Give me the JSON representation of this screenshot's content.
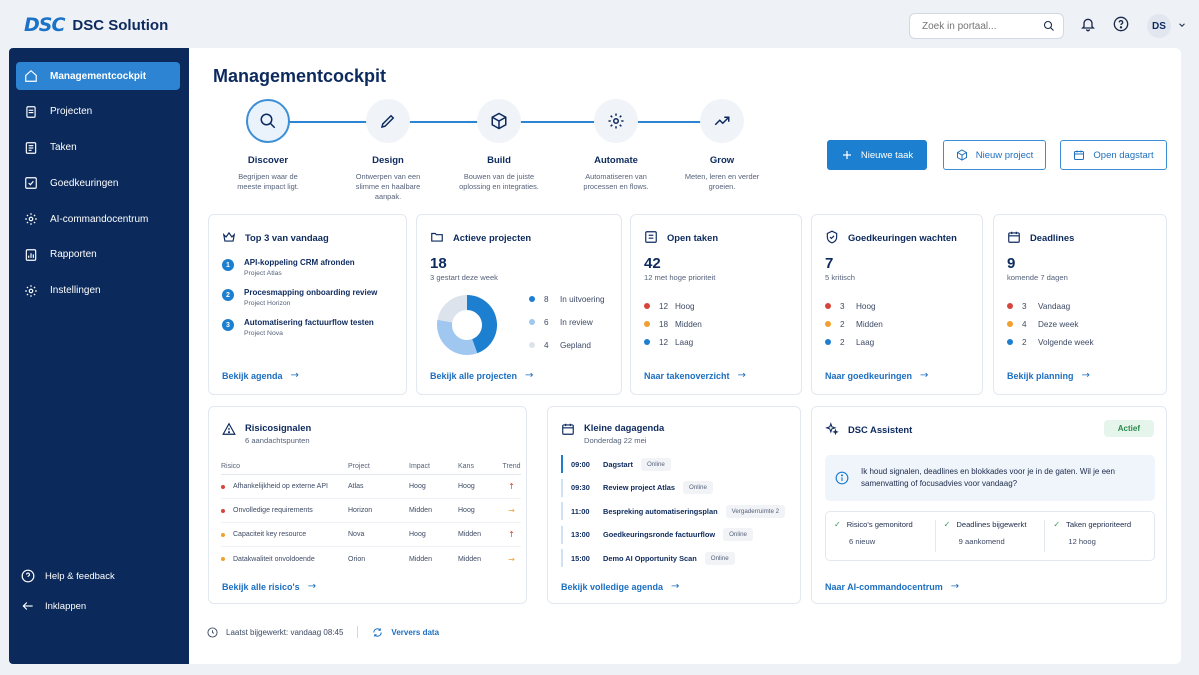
{
  "brand": {
    "mark": "DSC",
    "name": "DSC Solution"
  },
  "search": {
    "placeholder": "Zoek in portaal..."
  },
  "user": {
    "initials": "DS"
  },
  "sidebar": {
    "items": [
      {
        "label": "Managementcockpit",
        "icon": "home-icon"
      },
      {
        "label": "Projecten",
        "icon": "folder-icon"
      },
      {
        "label": "Taken",
        "icon": "list-icon"
      },
      {
        "label": "Goedkeuringen",
        "icon": "check-square-icon"
      },
      {
        "label": "AI-commandocentrum",
        "icon": "gear-icon"
      },
      {
        "label": "Rapporten",
        "icon": "report-icon"
      },
      {
        "label": "Instellingen",
        "icon": "gear-icon"
      }
    ],
    "help": "Help & feedback",
    "collapse": "Inklappen"
  },
  "page": {
    "title": "Managementcockpit"
  },
  "process": [
    {
      "name": "Discover",
      "desc": "Begrijpen waar de meeste impact ligt."
    },
    {
      "name": "Design",
      "desc": "Ontwerpen van een slimme en haalbare aanpak."
    },
    {
      "name": "Build",
      "desc": "Bouwen van de juiste oplossing en integraties."
    },
    {
      "name": "Automate",
      "desc": "Automatiseren van processen en flows."
    },
    {
      "name": "Grow",
      "desc": "Meten, leren en verder groeien."
    }
  ],
  "actions": {
    "new_task": "Nieuwe taak",
    "new_project": "Nieuw project",
    "open_dayplan": "Open dagstart"
  },
  "top3": {
    "title": "Top 3 van vandaag",
    "items": [
      {
        "n": "1",
        "title": "API-koppeling CRM afronden",
        "project": "Project Atlas"
      },
      {
        "n": "2",
        "title": "Procesmapping onboarding review",
        "project": "Project Horizon"
      },
      {
        "n": "3",
        "title": "Automatisering factuurflow testen",
        "project": "Project Nova"
      }
    ],
    "link": "Bekijk agenda"
  },
  "projects": {
    "title": "Actieve projecten",
    "count": "18",
    "sub": "3 gestart deze week",
    "legend": [
      {
        "value": 8,
        "label": "In uitvoering",
        "color": "#1d7fd0"
      },
      {
        "value": 6,
        "label": "In review",
        "color": "#9fc7ef"
      },
      {
        "value": 4,
        "label": "Gepland",
        "color": "#dde3ec"
      }
    ],
    "link": "Bekijk alle projecten"
  },
  "tasks": {
    "title": "Open taken",
    "count": "42",
    "sub": "12 met hoge prioriteit",
    "rows": [
      {
        "num": "12",
        "label": "Hoog",
        "color": "#d6453d"
      },
      {
        "num": "18",
        "label": "Midden",
        "color": "#f0a030"
      },
      {
        "num": "12",
        "label": "Laag",
        "color": "#1d7fd0"
      }
    ],
    "link": "Naar takenoverzicht"
  },
  "approvals": {
    "title": "Goedkeuringen wachten",
    "count": "7",
    "sub": "5 kritisch",
    "rows": [
      {
        "num": "3",
        "label": "Hoog",
        "color": "#d6453d"
      },
      {
        "num": "2",
        "label": "Midden",
        "color": "#f0a030"
      },
      {
        "num": "2",
        "label": "Laag",
        "color": "#1d7fd0"
      }
    ],
    "link": "Naar goedkeuringen"
  },
  "deadlines": {
    "title": "Deadlines",
    "count": "9",
    "sub": "komende 7 dagen",
    "rows": [
      {
        "num": "3",
        "label": "Vandaag",
        "color": "#d6453d"
      },
      {
        "num": "4",
        "label": "Deze week",
        "color": "#f0a030"
      },
      {
        "num": "2",
        "label": "Volgende week",
        "color": "#1d7fd0"
      }
    ],
    "link": "Bekijk planning"
  },
  "risks": {
    "title": "Risicosignalen",
    "sub": "6 aandachtspunten",
    "headers": [
      "Risico",
      "Project",
      "Impact",
      "Kans",
      "Trend"
    ],
    "rows": [
      {
        "risk": "Afhankelijkheid op externe API",
        "project": "Atlas",
        "impact": "Hoog",
        "chance": "Hoog",
        "trend": "↑",
        "color": "#d6453d",
        "trend_color": "#d6453d"
      },
      {
        "risk": "Onvolledige requirements",
        "project": "Horizon",
        "impact": "Midden",
        "chance": "Hoog",
        "trend": "→",
        "color": "#d6453d",
        "trend_color": "#f0a030"
      },
      {
        "risk": "Capaciteit key resource",
        "project": "Nova",
        "impact": "Hoog",
        "chance": "Midden",
        "trend": "↑",
        "color": "#f0a030",
        "trend_color": "#d6453d"
      },
      {
        "risk": "Datakwaliteit onvoldoende",
        "project": "Orion",
        "impact": "Midden",
        "chance": "Midden",
        "trend": "→",
        "color": "#f0a030",
        "trend_color": "#f0a030"
      }
    ],
    "link": "Bekijk alle risico's"
  },
  "agenda": {
    "title": "Kleine dagagenda",
    "sub": "Donderdag 22 mei",
    "rows": [
      {
        "time": "09:00",
        "title": "Dagstart",
        "tag": "Online"
      },
      {
        "time": "09:30",
        "title": "Review project Atlas",
        "tag": "Online"
      },
      {
        "time": "11:00",
        "title": "Bespreking automatiseringsplan",
        "tag": "Vergaderruimte 2"
      },
      {
        "time": "13:00",
        "title": "Goedkeuringsronde factuurflow",
        "tag": "Online"
      },
      {
        "time": "15:00",
        "title": "Demo AI Opportunity Scan",
        "tag": "Online"
      }
    ],
    "link": "Bekijk volledige agenda"
  },
  "assistant": {
    "title": "DSC Assistent",
    "badge": "Actief",
    "message": "Ik houd signalen, deadlines en blokkades voor je in de gaten. Wil je een samenvatting of focusadvies voor vandaag?",
    "stats": [
      {
        "label": "Risico's gemonitord",
        "value": "6 nieuw"
      },
      {
        "label": "Deadlines bijgewerkt",
        "value": "9 aankomend"
      },
      {
        "label": "Taken geprioriteerd",
        "value": "12 hoog"
      }
    ],
    "link": "Naar AI-commandocentrum"
  },
  "footer": {
    "updated": "Laatst bijgewerkt: vandaag 08:45",
    "refresh": "Ververs data"
  }
}
